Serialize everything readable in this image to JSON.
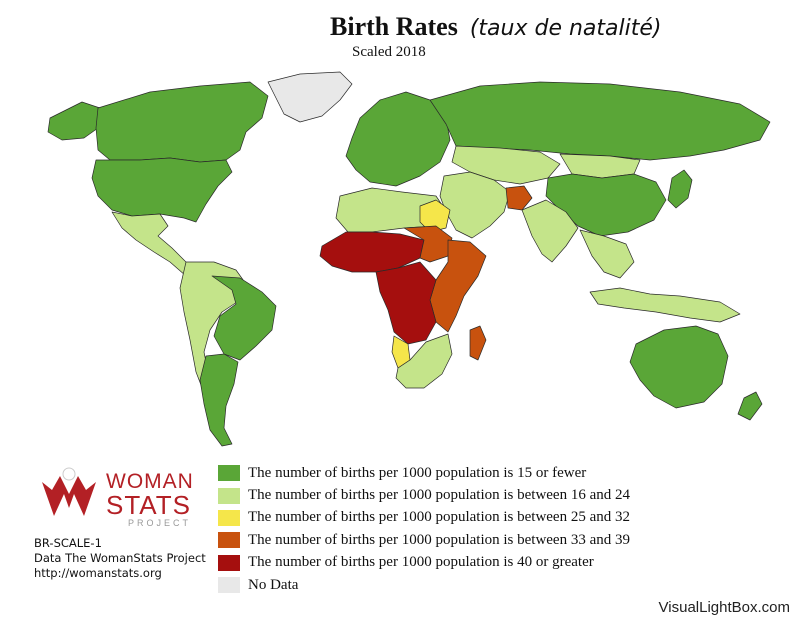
{
  "title": {
    "main": "Birth Rates",
    "subtitle_fr": "(taux de natalité)",
    "scale_label": "Scaled 2018"
  },
  "colors": {
    "c15_or_fewer": "#5aa637",
    "c16_24": "#c4e48a",
    "c25_32": "#f5e64a",
    "c33_39": "#c8520e",
    "c40_plus": "#a50f0e",
    "no_data": "#e8e8e8",
    "ocean": "#ffffff",
    "border": "#2a2a2a"
  },
  "legend": [
    {
      "label": "The number of births per 1000 population is 15 or fewer",
      "color": "#5aa637"
    },
    {
      "label": "The number of births per 1000 population is between 16 and 24",
      "color": "#c4e48a"
    },
    {
      "label": "The number of births per 1000 population is between 25 and 32",
      "color": "#f5e64a"
    },
    {
      "label": "The number of births per 1000 population is between 33 and 39",
      "color": "#c8520e"
    },
    {
      "label": "The number of births per 1000 population is 40 or greater",
      "color": "#a50f0e"
    },
    {
      "label": "No Data",
      "color": "#e8e8e8"
    }
  ],
  "logo": {
    "line1": "WOMAN",
    "line2": "STATS",
    "line3": "PROJECT"
  },
  "meta": {
    "code": "BR-SCALE-1",
    "source": "Data The WomanStats Project",
    "url": "http://womanstats.org"
  },
  "watermark": "VisualLightBox.com",
  "regions": [
    {
      "name": "greenland",
      "category": "no_data"
    },
    {
      "name": "canada",
      "category": "c15_or_fewer"
    },
    {
      "name": "usa",
      "category": "c15_or_fewer"
    },
    {
      "name": "alaska",
      "category": "c15_or_fewer"
    },
    {
      "name": "mexico-central-america",
      "category": "c16_24"
    },
    {
      "name": "south-america",
      "category": "c16_24"
    },
    {
      "name": "brazil",
      "category": "c15_or_fewer"
    },
    {
      "name": "chile-argentina-south",
      "category": "c15_or_fewer"
    },
    {
      "name": "europe",
      "category": "c15_or_fewer"
    },
    {
      "name": "russia",
      "category": "c15_or_fewer"
    },
    {
      "name": "china",
      "category": "c15_or_fewer"
    },
    {
      "name": "central-asia",
      "category": "c16_24"
    },
    {
      "name": "mongolia",
      "category": "c16_24"
    },
    {
      "name": "middle-east",
      "category": "c16_24"
    },
    {
      "name": "afghanistan",
      "category": "c33_39"
    },
    {
      "name": "south-asia",
      "category": "c16_24"
    },
    {
      "name": "southeast-asia",
      "category": "c16_24"
    },
    {
      "name": "japan",
      "category": "c15_or_fewer"
    },
    {
      "name": "north-africa",
      "category": "c16_24"
    },
    {
      "name": "libya-egypt-yellow",
      "category": "c25_32"
    },
    {
      "name": "west-africa-high",
      "category": "c40_plus"
    },
    {
      "name": "sahel-band",
      "category": "c33_39"
    },
    {
      "name": "east-africa",
      "category": "c33_39"
    },
    {
      "name": "central-africa-high",
      "category": "c40_plus"
    },
    {
      "name": "angola-yellow",
      "category": "c25_32"
    },
    {
      "name": "southern-africa",
      "category": "c16_24"
    },
    {
      "name": "madagascar",
      "category": "c33_39"
    },
    {
      "name": "australia",
      "category": "c15_or_fewer"
    },
    {
      "name": "new-zealand",
      "category": "c15_or_fewer"
    },
    {
      "name": "indonesia-png",
      "category": "c16_24"
    }
  ]
}
